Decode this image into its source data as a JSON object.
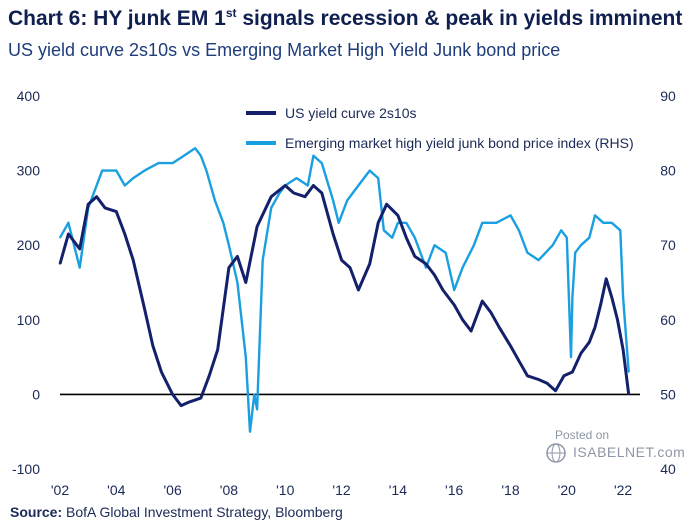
{
  "page": {
    "title_main": "Chart 6: HY junk EM 1",
    "title_sup": "st",
    "title_rest": " signals recession & peak in yields imminent",
    "subtitle": "US yield curve 2s10s vs Emerging Market High Yield Junk bond price",
    "source_label": "Source:",
    "source_text": "BofA Global Investment Strategy, Bloomberg",
    "watermark_posted": "Posted on",
    "watermark_site": "ISABELNET.com"
  },
  "colors": {
    "series_curve": "#14206b",
    "series_junk": "#1a9fe0",
    "text_dark": "#1b2a57",
    "zero_line": "#000000"
  },
  "chart_data": {
    "type": "line",
    "title": "Chart 6: HY junk EM 1st signals recession & peak in yields imminent",
    "subtitle": "US yield curve 2s10s vs Emerging Market High Yield Junk bond price",
    "x_range": [
      2002,
      2022.6
    ],
    "x_ticks": [
      "'02",
      "'04",
      "'06",
      "'08",
      "'10",
      "'12",
      "'14",
      "'16",
      "'18",
      "'20",
      "'22"
    ],
    "x_tick_values": [
      2002,
      2004,
      2006,
      2008,
      2010,
      2012,
      2014,
      2016,
      2018,
      2020,
      2022
    ],
    "y_left": {
      "ylim": [
        -100,
        400
      ],
      "ticks": [
        400,
        300,
        200,
        100,
        0,
        -100
      ],
      "tick_labels": [
        "400",
        "300",
        "200",
        "100",
        "0",
        "-100"
      ]
    },
    "y_right": {
      "ylim": [
        40,
        90
      ],
      "ticks": [
        90,
        80,
        70,
        60,
        50,
        40
      ],
      "tick_labels": [
        "90",
        "80",
        "70",
        "60",
        "50",
        "40"
      ]
    },
    "zero_line": 0,
    "legend_position": "top-center",
    "series": [
      {
        "name": "US yield curve 2s10s",
        "axis": "left",
        "x": [
          2002.0,
          2002.3,
          2002.7,
          2003.0,
          2003.3,
          2003.6,
          2004.0,
          2004.3,
          2004.6,
          2005.0,
          2005.3,
          2005.6,
          2006.0,
          2006.3,
          2006.6,
          2007.0,
          2007.3,
          2007.6,
          2008.0,
          2008.3,
          2008.6,
          2009.0,
          2009.5,
          2010.0,
          2010.3,
          2010.7,
          2011.0,
          2011.3,
          2011.7,
          2012.0,
          2012.3,
          2012.6,
          2013.0,
          2013.3,
          2013.6,
          2014.0,
          2014.3,
          2014.6,
          2015.0,
          2015.3,
          2015.6,
          2016.0,
          2016.3,
          2016.6,
          2017.0,
          2017.3,
          2017.6,
          2018.0,
          2018.3,
          2018.6,
          2019.0,
          2019.3,
          2019.6,
          2019.9,
          2020.2,
          2020.5,
          2020.8,
          2021.0,
          2021.2,
          2021.4,
          2021.6,
          2021.8,
          2022.0,
          2022.2
        ],
        "y": [
          175,
          215,
          195,
          255,
          265,
          250,
          245,
          215,
          180,
          115,
          65,
          30,
          0,
          -15,
          -10,
          -5,
          25,
          60,
          170,
          185,
          150,
          225,
          265,
          280,
          270,
          265,
          280,
          270,
          215,
          180,
          170,
          140,
          175,
          230,
          255,
          240,
          210,
          185,
          175,
          160,
          140,
          120,
          100,
          85,
          125,
          110,
          90,
          65,
          45,
          25,
          20,
          15,
          5,
          25,
          30,
          55,
          70,
          90,
          120,
          155,
          130,
          100,
          60,
          0
        ]
      },
      {
        "name": "Emerging market high yield junk bond price index (RHS)",
        "axis": "right",
        "x": [
          2002.0,
          2002.3,
          2002.7,
          2003.0,
          2003.5,
          2004.0,
          2004.3,
          2004.6,
          2005.0,
          2005.5,
          2006.0,
          2006.4,
          2006.8,
          2007.0,
          2007.2,
          2007.5,
          2007.8,
          2008.0,
          2008.3,
          2008.6,
          2008.75,
          2008.9,
          2009.0,
          2009.2,
          2009.5,
          2009.8,
          2010.0,
          2010.4,
          2010.8,
          2011.0,
          2011.3,
          2011.7,
          2011.9,
          2012.2,
          2012.6,
          2013.0,
          2013.3,
          2013.5,
          2013.8,
          2014.0,
          2014.3,
          2014.6,
          2015.0,
          2015.3,
          2015.7,
          2016.0,
          2016.3,
          2016.7,
          2017.0,
          2017.5,
          2018.0,
          2018.3,
          2018.6,
          2019.0,
          2019.5,
          2019.8,
          2020.0,
          2020.15,
          2020.2,
          2020.3,
          2020.5,
          2020.8,
          2021.0,
          2021.3,
          2021.6,
          2021.9,
          2022.0,
          2022.2
        ],
        "y": [
          71,
          73,
          67,
          75,
          80,
          80,
          78,
          79,
          80,
          81,
          81,
          82,
          83,
          82,
          80,
          76,
          73,
          70,
          65,
          55,
          45,
          50,
          48,
          68,
          75,
          77,
          78,
          79,
          78,
          82,
          81,
          76,
          73,
          76,
          78,
          80,
          79,
          72,
          71,
          73,
          73,
          71,
          67,
          70,
          69,
          64,
          67,
          70,
          73,
          73,
          74,
          72,
          69,
          68,
          70,
          72,
          71,
          55,
          63,
          69,
          70,
          71,
          74,
          73,
          73,
          72,
          63,
          53
        ]
      }
    ]
  }
}
